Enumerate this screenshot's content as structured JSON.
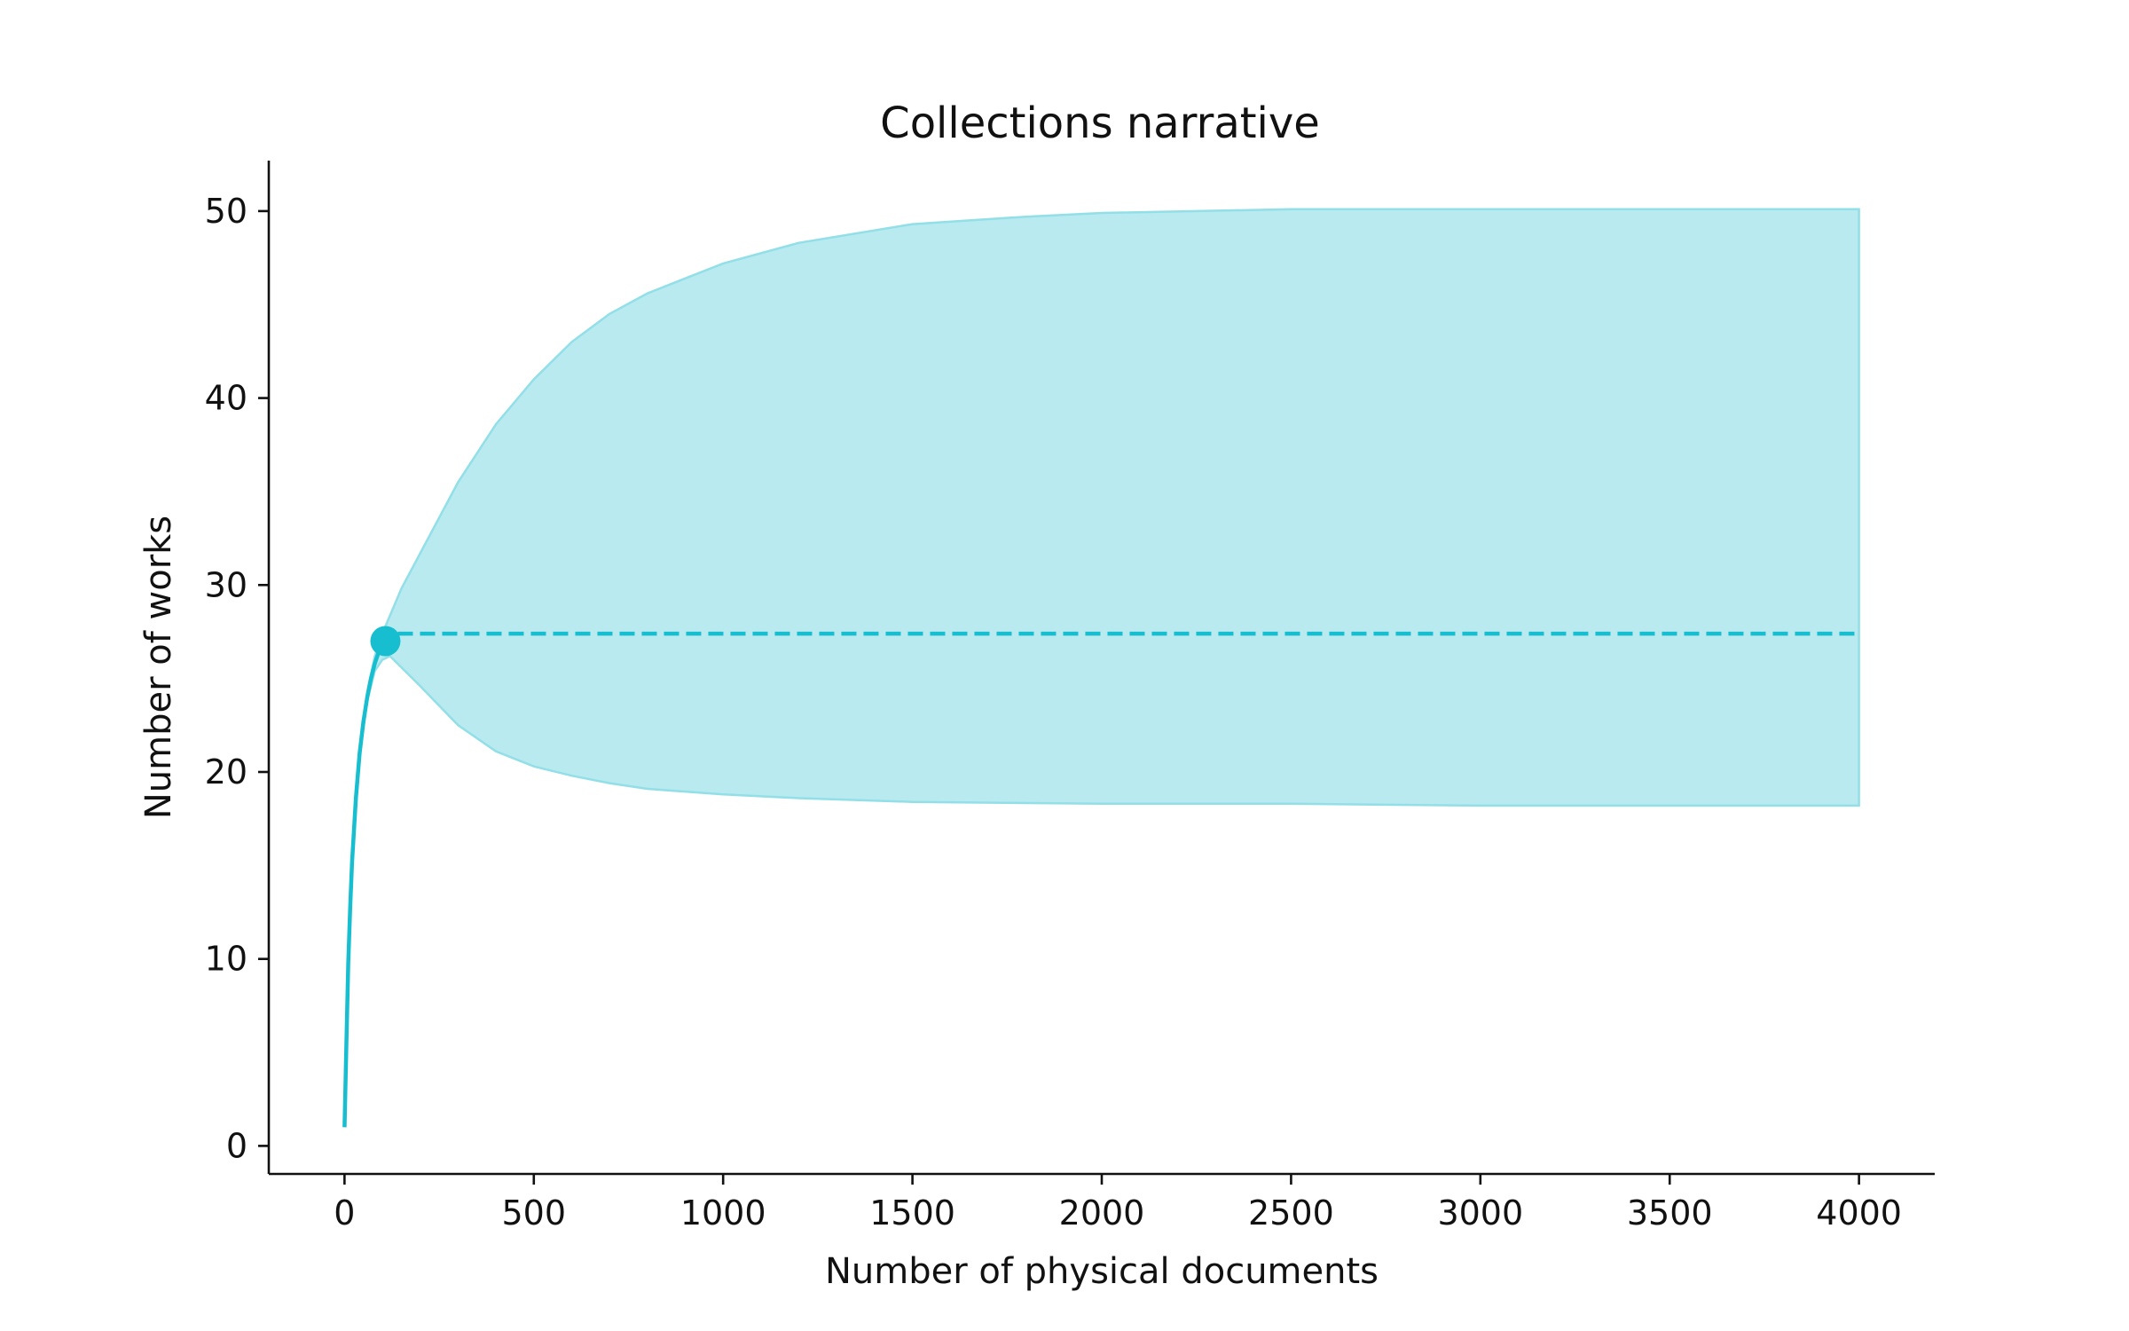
{
  "chart_data": {
    "type": "line",
    "title": "Collections narrative",
    "xlabel": "Number of physical documents",
    "ylabel": "Number of works",
    "xlim": [
      -200,
      4200
    ],
    "ylim": [
      -1.5,
      52.7
    ],
    "xticks": [
      0,
      500,
      1000,
      1500,
      2000,
      2500,
      3000,
      3500,
      4000
    ],
    "yticks": [
      0,
      10,
      20,
      30,
      40,
      50
    ],
    "grid": false,
    "color": "#17becf",
    "band_color": "#b8eaf0",
    "observed_curve": {
      "x": [
        0,
        5,
        10,
        15,
        20,
        30,
        40,
        50,
        60,
        70,
        80,
        90,
        100,
        108
      ],
      "y": [
        1,
        5.5,
        9.8,
        12.8,
        15.2,
        18.6,
        21.0,
        22.7,
        24.0,
        25.0,
        25.8,
        26.4,
        26.8,
        27.0
      ]
    },
    "observed_point": {
      "x": 108,
      "y": 27.0
    },
    "extrapolation": {
      "x": [
        108,
        4000
      ],
      "y": [
        27.4,
        27.4
      ],
      "style": "dashed"
    },
    "band_upper": {
      "x": [
        0,
        10,
        20,
        40,
        60,
        80,
        100,
        150,
        200,
        300,
        400,
        500,
        600,
        700,
        800,
        1000,
        1200,
        1500,
        1800,
        2000,
        2500,
        3000,
        3500,
        4000
      ],
      "y": [
        1,
        9.9,
        15.3,
        21.2,
        24.3,
        26.2,
        27.4,
        29.8,
        31.7,
        35.5,
        38.6,
        41.0,
        43.0,
        44.5,
        45.6,
        47.2,
        48.3,
        49.3,
        49.7,
        49.9,
        50.1,
        50.1,
        50.1,
        50.1
      ]
    },
    "band_lower": {
      "x": [
        0,
        10,
        20,
        40,
        60,
        80,
        100,
        120,
        150,
        200,
        300,
        400,
        500,
        600,
        700,
        800,
        1000,
        1200,
        1500,
        2000,
        2500,
        3000,
        3500,
        4000
      ],
      "y": [
        1,
        9.7,
        15.1,
        20.9,
        23.8,
        25.4,
        26.0,
        26.2,
        25.6,
        24.6,
        22.5,
        21.1,
        20.3,
        19.8,
        19.4,
        19.1,
        18.8,
        18.6,
        18.4,
        18.3,
        18.3,
        18.2,
        18.2,
        18.2
      ]
    }
  }
}
